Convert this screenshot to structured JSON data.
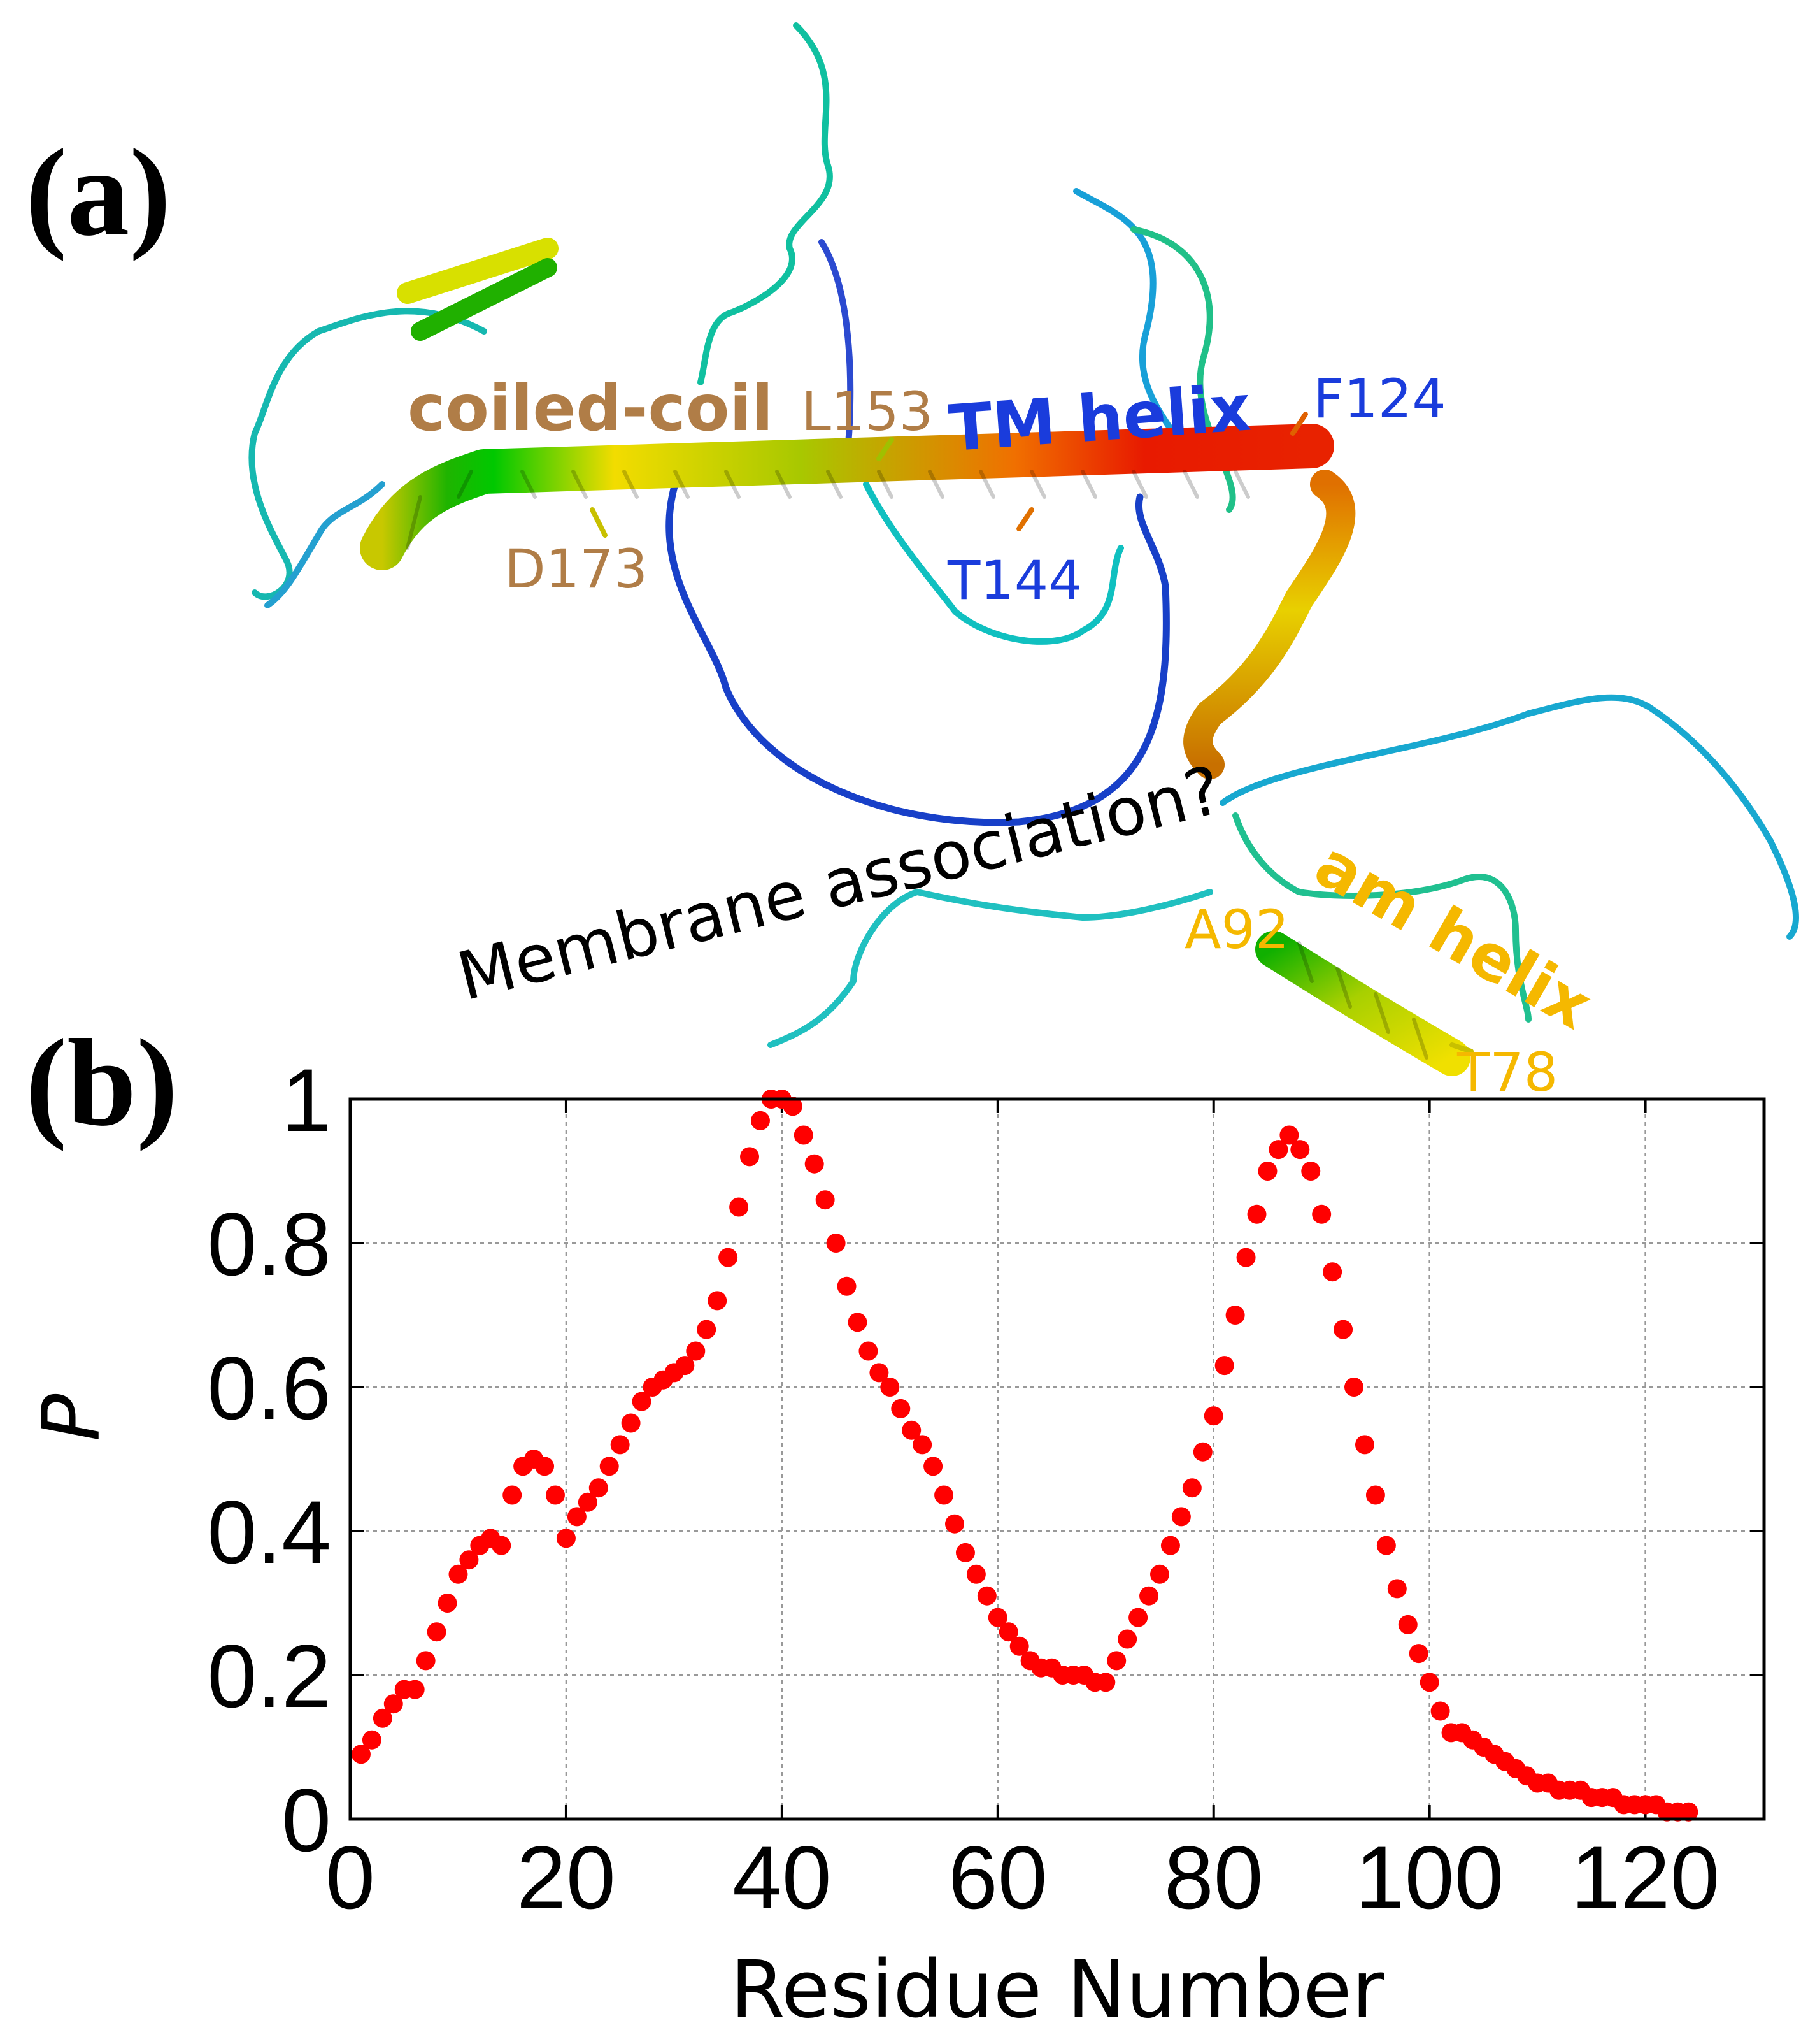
{
  "panel_a": {
    "label": "(a)",
    "annotations": {
      "coiled_coil": "coiled-coil",
      "tm_helix": "TM helix",
      "am_helix": "am helix",
      "membrane": "Membrane association?",
      "l153": "L153",
      "f124": "F124",
      "d173": "D173",
      "t144": "T144",
      "a92": "A92",
      "t78": "T78"
    },
    "colors": {
      "coiled_coil": "#b07d47",
      "tm_helix": "#1a3cdc",
      "am_helix": "#f5b800",
      "residue_blue": "#1a3cdc",
      "residue_brown": "#b07d47",
      "residue_orange": "#f5b800"
    }
  },
  "panel_b": {
    "label": "(b)"
  },
  "chart_data": {
    "type": "scatter",
    "title": "",
    "xlabel": "Residue Number",
    "ylabel": "P",
    "xlim": [
      0,
      131
    ],
    "ylim": [
      0,
      1
    ],
    "grid": true,
    "marker_color": "#ff0000",
    "x_ticks": [
      0,
      20,
      40,
      60,
      80,
      100,
      120
    ],
    "y_ticks": [
      0,
      0.2,
      0.4,
      0.6,
      0.8,
      1
    ],
    "x_tick_labels": [
      "0",
      "20",
      "40",
      "60",
      "80",
      "100",
      "120"
    ],
    "y_tick_labels": [
      "0",
      "0.2",
      "0.4",
      "0.6",
      "0.8",
      "1"
    ],
    "series": [
      {
        "name": "P",
        "x": [
          1,
          2,
          3,
          4,
          5,
          6,
          7,
          8,
          9,
          10,
          11,
          12,
          13,
          14,
          15,
          16,
          17,
          18,
          19,
          20,
          21,
          22,
          23,
          24,
          25,
          26,
          27,
          28,
          29,
          30,
          31,
          32,
          33,
          34,
          35,
          36,
          37,
          38,
          39,
          40,
          41,
          42,
          43,
          44,
          45,
          46,
          47,
          48,
          49,
          50,
          51,
          52,
          53,
          54,
          55,
          56,
          57,
          58,
          59,
          60,
          61,
          62,
          63,
          64,
          65,
          66,
          67,
          68,
          69,
          70,
          71,
          72,
          73,
          74,
          75,
          76,
          77,
          78,
          79,
          80,
          81,
          82,
          83,
          84,
          85,
          86,
          87,
          88,
          89,
          90,
          91,
          92,
          93,
          94,
          95,
          96,
          97,
          98,
          99,
          100,
          101,
          102,
          103,
          104,
          105,
          106,
          107,
          108,
          109,
          110,
          111,
          112,
          113,
          114,
          115,
          116,
          117,
          118,
          119,
          120,
          121,
          122,
          123,
          124
        ],
        "y": [
          0.09,
          0.11,
          0.14,
          0.16,
          0.18,
          0.18,
          0.22,
          0.26,
          0.3,
          0.34,
          0.36,
          0.38,
          0.39,
          0.38,
          0.45,
          0.49,
          0.5,
          0.49,
          0.45,
          0.39,
          0.42,
          0.44,
          0.46,
          0.49,
          0.52,
          0.55,
          0.58,
          0.6,
          0.61,
          0.62,
          0.63,
          0.65,
          0.68,
          0.72,
          0.78,
          0.85,
          0.92,
          0.97,
          1.0,
          1.0,
          0.99,
          0.95,
          0.91,
          0.86,
          0.8,
          0.74,
          0.69,
          0.65,
          0.62,
          0.6,
          0.57,
          0.54,
          0.52,
          0.49,
          0.45,
          0.41,
          0.37,
          0.34,
          0.31,
          0.28,
          0.26,
          0.24,
          0.22,
          0.21,
          0.21,
          0.2,
          0.2,
          0.2,
          0.19,
          0.19,
          0.22,
          0.25,
          0.28,
          0.31,
          0.34,
          0.38,
          0.42,
          0.46,
          0.51,
          0.56,
          0.63,
          0.7,
          0.78,
          0.84,
          0.9,
          0.93,
          0.95,
          0.93,
          0.9,
          0.84,
          0.76,
          0.68,
          0.6,
          0.52,
          0.45,
          0.38,
          0.32,
          0.27,
          0.23,
          0.19,
          0.15,
          0.12,
          0.12,
          0.11,
          0.1,
          0.09,
          0.08,
          0.07,
          0.06,
          0.05,
          0.05,
          0.04,
          0.04,
          0.04,
          0.03,
          0.03,
          0.03,
          0.02,
          0.02,
          0.02,
          0.02,
          0.01,
          0.01,
          0.01
        ]
      }
    ]
  }
}
